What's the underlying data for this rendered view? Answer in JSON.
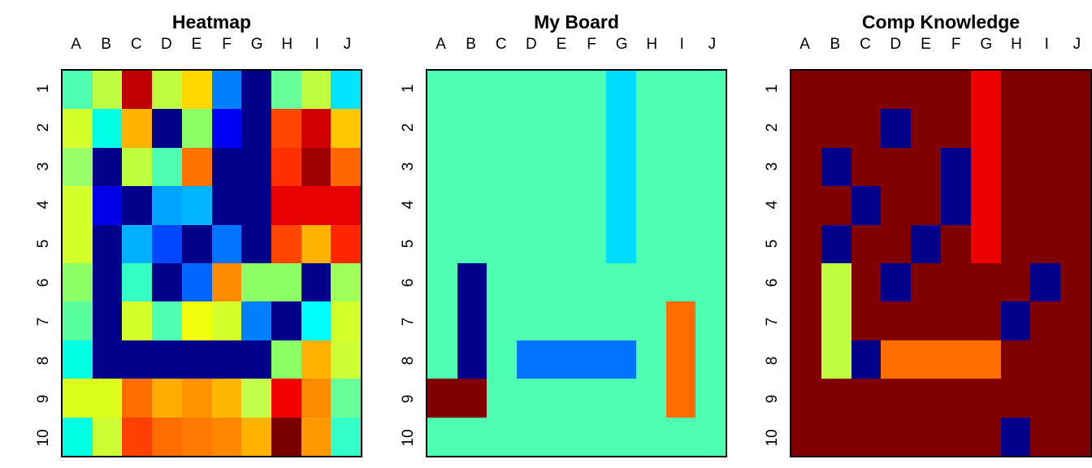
{
  "figure": {
    "background": "#FFFFFF",
    "plot_border_color": "#000000"
  },
  "chart_data": [
    {
      "type": "heatmap",
      "title": "Heatmap",
      "x_labels": [
        "A",
        "B",
        "C",
        "D",
        "E",
        "F",
        "G",
        "H",
        "I",
        "J"
      ],
      "y_labels": [
        "1",
        "2",
        "3",
        "4",
        "5",
        "6",
        "7",
        "8",
        "9",
        "10"
      ],
      "legend": "none",
      "cell_colors": [
        [
          "#4DFFB0",
          "#BFFF40",
          "#C00000",
          "#BFFF40",
          "#FFD900",
          "#0080FF",
          "#00008B",
          "#66FF99",
          "#BFFF40",
          "#00E5FF"
        ],
        [
          "#D4FF2B",
          "#00FFE5",
          "#FFB300",
          "#00008B",
          "#8CFF66",
          "#0000F2",
          "#00008B",
          "#FF4500",
          "#D00000",
          "#FFC800"
        ],
        [
          "#99FF66",
          "#00008B",
          "#BFFF40",
          "#4DFFB0",
          "#FF7300",
          "#00008B",
          "#00008B",
          "#FF3000",
          "#9E0000",
          "#FF6600"
        ],
        [
          "#D4FF2B",
          "#0000E6",
          "#00008B",
          "#00A4FF",
          "#00B4FF",
          "#00008B",
          "#00008B",
          "#E60000",
          "#E60000",
          "#E60000"
        ],
        [
          "#D4FF2B",
          "#00008B",
          "#00B0FF",
          "#0048FF",
          "#00008B",
          "#0073FF",
          "#00008B",
          "#FF4500",
          "#FFB300",
          "#FF2600"
        ],
        [
          "#8CFF66",
          "#00008B",
          "#33FFC4",
          "#00008B",
          "#0066FF",
          "#FF8C00",
          "#8CFF66",
          "#8CFF66",
          "#00008B",
          "#9EFF59"
        ],
        [
          "#59FF9E",
          "#00008B",
          "#D4FF2B",
          "#4DFFB0",
          "#F2FF0D",
          "#D4FF2B",
          "#0080FF",
          "#00008B",
          "#00FFFF",
          "#D4FF2B"
        ],
        [
          "#00FFE5",
          "#00008B",
          "#00008B",
          "#00008B",
          "#00008B",
          "#00008B",
          "#00008B",
          "#8CFF66",
          "#FFB300",
          "#CCFF33"
        ],
        [
          "#DBFF1A",
          "#DBFF1A",
          "#FF6D00",
          "#FFAD00",
          "#FF9400",
          "#FFB800",
          "#C3FF4A",
          "#F20000",
          "#FF8C00",
          "#66FF99"
        ],
        [
          "#00FFE5",
          "#CCFF33",
          "#FF4000",
          "#FF6D00",
          "#FF7A00",
          "#FF8800",
          "#FFB300",
          "#7A0000",
          "#FF9900",
          "#33FFC9"
        ]
      ]
    },
    {
      "type": "heatmap",
      "title": "My Board",
      "x_labels": [
        "A",
        "B",
        "C",
        "D",
        "E",
        "F",
        "G",
        "H",
        "I",
        "J"
      ],
      "y_labels": [
        "1",
        "2",
        "3",
        "4",
        "5",
        "6",
        "7",
        "8",
        "9",
        "10"
      ],
      "legend": "none",
      "cell_colors": [
        [
          "#4DFFB0",
          "#4DFFB0",
          "#4DFFB0",
          "#4DFFB0",
          "#4DFFB0",
          "#4DFFB0",
          "#00DCFF",
          "#4DFFB0",
          "#4DFFB0",
          "#4DFFB0"
        ],
        [
          "#4DFFB0",
          "#4DFFB0",
          "#4DFFB0",
          "#4DFFB0",
          "#4DFFB0",
          "#4DFFB0",
          "#00DCFF",
          "#4DFFB0",
          "#4DFFB0",
          "#4DFFB0"
        ],
        [
          "#4DFFB0",
          "#4DFFB0",
          "#4DFFB0",
          "#4DFFB0",
          "#4DFFB0",
          "#4DFFB0",
          "#00DCFF",
          "#4DFFB0",
          "#4DFFB0",
          "#4DFFB0"
        ],
        [
          "#4DFFB0",
          "#4DFFB0",
          "#4DFFB0",
          "#4DFFB0",
          "#4DFFB0",
          "#4DFFB0",
          "#00DCFF",
          "#4DFFB0",
          "#4DFFB0",
          "#4DFFB0"
        ],
        [
          "#4DFFB0",
          "#4DFFB0",
          "#4DFFB0",
          "#4DFFB0",
          "#4DFFB0",
          "#4DFFB0",
          "#00DCFF",
          "#4DFFB0",
          "#4DFFB0",
          "#4DFFB0"
        ],
        [
          "#4DFFB0",
          "#00008B",
          "#4DFFB0",
          "#4DFFB0",
          "#4DFFB0",
          "#4DFFB0",
          "#4DFFB0",
          "#4DFFB0",
          "#4DFFB0",
          "#4DFFB0"
        ],
        [
          "#4DFFB0",
          "#00008B",
          "#4DFFB0",
          "#4DFFB0",
          "#4DFFB0",
          "#4DFFB0",
          "#4DFFB0",
          "#4DFFB0",
          "#FF6D00",
          "#4DFFB0"
        ],
        [
          "#4DFFB0",
          "#00008B",
          "#4DFFB0",
          "#0073FF",
          "#0073FF",
          "#0073FF",
          "#0073FF",
          "#4DFFB0",
          "#FF6D00",
          "#4DFFB0"
        ],
        [
          "#800000",
          "#800000",
          "#4DFFB0",
          "#4DFFB0",
          "#4DFFB0",
          "#4DFFB0",
          "#4DFFB0",
          "#4DFFB0",
          "#FF6D00",
          "#4DFFB0"
        ],
        [
          "#4DFFB0",
          "#4DFFB0",
          "#4DFFB0",
          "#4DFFB0",
          "#4DFFB0",
          "#4DFFB0",
          "#4DFFB0",
          "#4DFFB0",
          "#4DFFB0",
          "#4DFFB0"
        ]
      ]
    },
    {
      "type": "heatmap",
      "title": "Comp Knowledge",
      "x_labels": [
        "A",
        "B",
        "C",
        "D",
        "E",
        "F",
        "G",
        "H",
        "I",
        "J"
      ],
      "y_labels": [
        "1",
        "2",
        "3",
        "4",
        "5",
        "6",
        "7",
        "8",
        "9",
        "10"
      ],
      "legend": "none",
      "cell_colors": [
        [
          "#800000",
          "#800000",
          "#800000",
          "#800000",
          "#800000",
          "#800000",
          "#EE0000",
          "#800000",
          "#800000",
          "#800000"
        ],
        [
          "#800000",
          "#800000",
          "#800000",
          "#00008B",
          "#800000",
          "#800000",
          "#EE0000",
          "#800000",
          "#800000",
          "#800000"
        ],
        [
          "#800000",
          "#00008B",
          "#800000",
          "#800000",
          "#800000",
          "#00008B",
          "#EE0000",
          "#800000",
          "#800000",
          "#800000"
        ],
        [
          "#800000",
          "#800000",
          "#00008B",
          "#800000",
          "#800000",
          "#00008B",
          "#EE0000",
          "#800000",
          "#800000",
          "#800000"
        ],
        [
          "#800000",
          "#00008B",
          "#800000",
          "#800000",
          "#00008B",
          "#800000",
          "#EE0000",
          "#800000",
          "#800000",
          "#800000"
        ],
        [
          "#800000",
          "#BFFF40",
          "#800000",
          "#00008B",
          "#800000",
          "#800000",
          "#800000",
          "#800000",
          "#00008B",
          "#800000"
        ],
        [
          "#800000",
          "#BFFF40",
          "#800000",
          "#800000",
          "#800000",
          "#800000",
          "#800000",
          "#00008B",
          "#800000",
          "#800000"
        ],
        [
          "#800000",
          "#BFFF40",
          "#00008B",
          "#FF6D00",
          "#FF6D00",
          "#FF6D00",
          "#FF6D00",
          "#800000",
          "#800000",
          "#800000"
        ],
        [
          "#800000",
          "#800000",
          "#800000",
          "#800000",
          "#800000",
          "#800000",
          "#800000",
          "#800000",
          "#800000",
          "#800000"
        ],
        [
          "#800000",
          "#800000",
          "#800000",
          "#800000",
          "#800000",
          "#800000",
          "#800000",
          "#00008B",
          "#800000",
          "#800000"
        ]
      ]
    }
  ]
}
